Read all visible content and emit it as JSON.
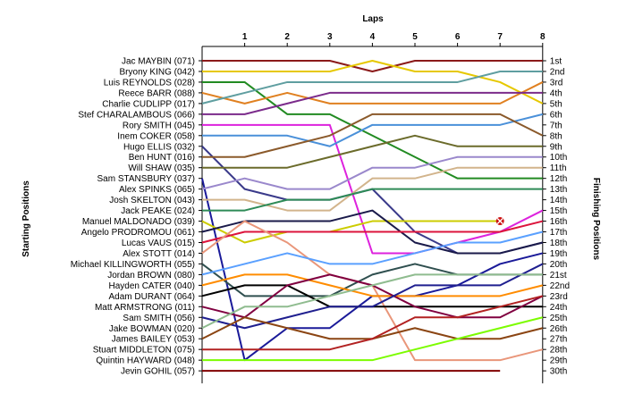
{
  "chart_data": {
    "type": "line",
    "title": "Laps",
    "ylabel_left": "Starting Positions",
    "ylabel_right": "Finishing Positions",
    "x": [
      1,
      2,
      3,
      4,
      5,
      6,
      7,
      8
    ],
    "xlim": [
      0,
      8
    ],
    "ylim": [
      1,
      31
    ],
    "y_reversed": true,
    "grid": false,
    "finishing_labels": [
      "1st",
      "2nd",
      "3rd",
      "4th",
      "5th",
      "6th",
      "7th",
      "8th",
      "9th",
      "10th",
      "11th",
      "12th",
      "13th",
      "14th",
      "15th",
      "16th",
      "17th",
      "18th",
      "19th",
      "20th",
      "21st",
      "22nd",
      "23rd",
      "24th",
      "25th",
      "26th",
      "27th",
      "28th",
      "29th",
      "30th"
    ],
    "retired_marker": {
      "series": "Manuel MALDONADO (039)",
      "lap": 7,
      "position": 16
    },
    "series": [
      {
        "name": "Jac MAYBIN (071)",
        "color": "#8b1a1a",
        "positions": [
          1,
          1,
          1,
          1,
          2,
          1,
          1,
          1,
          1
        ]
      },
      {
        "name": "Bryony KING (042)",
        "color": "#e6c800",
        "positions": [
          2,
          2,
          2,
          2,
          1,
          2,
          2,
          3,
          5
        ]
      },
      {
        "name": "Luis REYNOLDS (028)",
        "color": "#228b22",
        "positions": [
          3,
          3,
          6,
          6,
          8,
          10,
          12,
          12,
          12
        ]
      },
      {
        "name": "Reece BARR (088)",
        "color": "#e08020",
        "positions": [
          4,
          5,
          4,
          5,
          5,
          5,
          5,
          5,
          3
        ]
      },
      {
        "name": "Charlie CUDLIPP (017)",
        "color": "#5f9ea0",
        "positions": [
          5,
          4,
          3,
          3,
          3,
          3,
          3,
          2,
          2
        ]
      },
      {
        "name": "Stef CHARALAMBOUS (066)",
        "color": "#7b2b8b",
        "positions": [
          6,
          6,
          5,
          4,
          4,
          4,
          4,
          4,
          4
        ]
      },
      {
        "name": "Rory SMITH (045)",
        "color": "#dd22dd",
        "positions": [
          7,
          7,
          7,
          7,
          19,
          19,
          18,
          17,
          15
        ]
      },
      {
        "name": "Inem COKER (058)",
        "color": "#4a90d9",
        "positions": [
          8,
          8,
          8,
          9,
          7,
          7,
          7,
          7,
          6
        ]
      },
      {
        "name": "Hugo ELLIS (032)",
        "color": "#3a3a8a",
        "positions": [
          9,
          13,
          14,
          14,
          13,
          17,
          19,
          19,
          18
        ]
      },
      {
        "name": "Ben HUNT (016)",
        "color": "#8b5a2b",
        "positions": [
          10,
          10,
          9,
          8,
          6,
          6,
          6,
          6,
          8
        ]
      },
      {
        "name": "Will SHAW (035)",
        "color": "#6b6b2b",
        "positions": [
          11,
          11,
          11,
          10,
          9,
          8,
          9,
          9,
          9
        ]
      },
      {
        "name": "Sam STANSBURY (037)",
        "color": "#1a1a99",
        "positions": [
          12,
          29,
          26,
          26,
          23,
          23,
          22,
          20,
          19
        ]
      },
      {
        "name": "Alex SPINKS (065)",
        "color": "#9a88cc",
        "positions": [
          13,
          12,
          13,
          13,
          11,
          11,
          10,
          10,
          10
        ]
      },
      {
        "name": "Josh SKELTON (043)",
        "color": "#d2b48c",
        "positions": [
          14,
          14,
          15,
          15,
          12,
          12,
          11,
          11,
          11
        ]
      },
      {
        "name": "Jack PEAKE (024)",
        "color": "#2e8b57",
        "positions": [
          15,
          15,
          14,
          14,
          13,
          13,
          13,
          13,
          13
        ]
      },
      {
        "name": "Manuel MALDONADO (039)",
        "color": "#cccc00",
        "positions": [
          16,
          18,
          17,
          17,
          16,
          16,
          16,
          16
        ]
      },
      {
        "name": "Angelo PRODROMOU (061)",
        "color": "#1a1a4a",
        "positions": [
          17,
          16,
          16,
          16,
          15,
          18,
          19,
          19,
          18
        ]
      },
      {
        "name": "Lucas VAUS (015)",
        "color": "#dc143c",
        "positions": [
          18,
          17,
          17,
          17,
          17,
          17,
          17,
          17,
          16
        ]
      },
      {
        "name": "Alex STOTT (014)",
        "color": "#e9967a",
        "positions": [
          19,
          16,
          18,
          21,
          22,
          29,
          29,
          29,
          28
        ]
      },
      {
        "name": "Michael KILLINGWORTH (055)",
        "color": "#2f4f4f",
        "positions": [
          20,
          23,
          23,
          23,
          21,
          20,
          21,
          21,
          21
        ]
      },
      {
        "name": "Jordan BROWN (080)",
        "color": "#5aa0ff",
        "positions": [
          21,
          20,
          19,
          20,
          20,
          19,
          18,
          18,
          17
        ]
      },
      {
        "name": "Hayden CATER (040)",
        "color": "#ff8c00",
        "positions": [
          22,
          21,
          21,
          22,
          23,
          23,
          23,
          23,
          22
        ]
      },
      {
        "name": "Adam DURANT (064)",
        "color": "#000000",
        "positions": [
          23,
          22,
          22,
          24,
          24,
          24,
          24,
          24,
          24
        ]
      },
      {
        "name": "Matt ARMSTRONG (011)",
        "color": "#800040",
        "positions": [
          24,
          25,
          22,
          21,
          22,
          24,
          25,
          25,
          23
        ]
      },
      {
        "name": "Sam SMITH (056)",
        "color": "#1f1f8f",
        "positions": [
          25,
          26,
          25,
          24,
          24,
          22,
          22,
          22,
          20
        ]
      },
      {
        "name": "Jake BOWMAN (020)",
        "color": "#8fbc8f",
        "positions": [
          26,
          24,
          24,
          23,
          22,
          21,
          21,
          21,
          21
        ]
      },
      {
        "name": "James BAILEY (053)",
        "color": "#8b4513",
        "positions": [
          27,
          25,
          26,
          27,
          27,
          26,
          27,
          27,
          26
        ]
      },
      {
        "name": "Stuart MIDDLETON (075)",
        "color": "#b22222",
        "positions": [
          28,
          28,
          28,
          28,
          27,
          25,
          25,
          24,
          23
        ]
      },
      {
        "name": "Quintin HAYWARD (048)",
        "color": "#7cfc00",
        "positions": [
          29,
          29,
          29,
          29,
          29,
          28,
          27,
          26,
          25
        ]
      },
      {
        "name": "Jevin GOHIL (057)",
        "color": "#800000",
        "positions": [
          30,
          30,
          30,
          30,
          30,
          30,
          30,
          30
        ]
      }
    ]
  }
}
